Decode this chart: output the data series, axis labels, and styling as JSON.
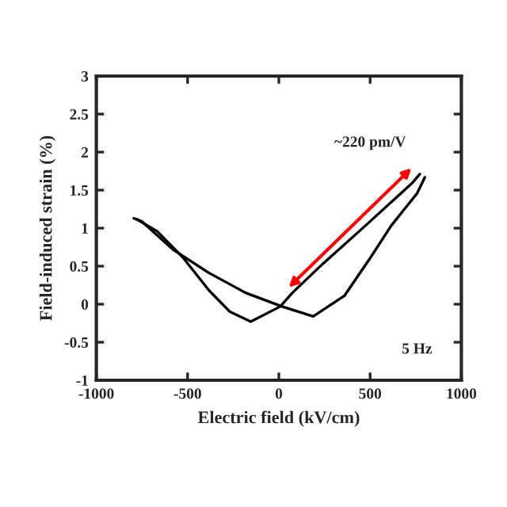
{
  "chart_data": {
    "type": "line",
    "xlabel": "Electric field (kV/cm)",
    "ylabel": "Field-induced strain (%)",
    "series": [
      {
        "color": "#000000",
        "x": [
          -795,
          -752,
          -581,
          -382,
          -182,
          17,
          188,
          359,
          501,
          615,
          758,
          800
        ],
        "values": [
          1.13,
          1.09,
          0.72,
          0.41,
          0.15,
          -0.03,
          -0.16,
          0.11,
          0.61,
          1.03,
          1.46,
          1.67
        ]
      },
      {
        "color": "#000000",
        "x": [
          -781,
          -667,
          -524,
          -382,
          -268,
          -154,
          8,
          74,
          245,
          473,
          729,
          772
        ],
        "values": [
          1.12,
          0.96,
          0.61,
          0.18,
          -0.1,
          -0.23,
          -0.03,
          0.15,
          0.54,
          1.03,
          1.59,
          1.71
        ]
      }
    ],
    "xlim": [
      -1000,
      1000
    ],
    "xticks": [
      -1000,
      -500,
      0,
      500,
      1000
    ],
    "ylim": [
      -1,
      3
    ],
    "yticks": [
      -1,
      -0.5,
      0,
      0.5,
      1,
      1.5,
      2,
      2.5,
      3
    ],
    "grid": false,
    "legend": false,
    "marker": "none",
    "line_style": "solid",
    "annotations": [
      "~220 pm/V",
      "5 Hz"
    ]
  }
}
